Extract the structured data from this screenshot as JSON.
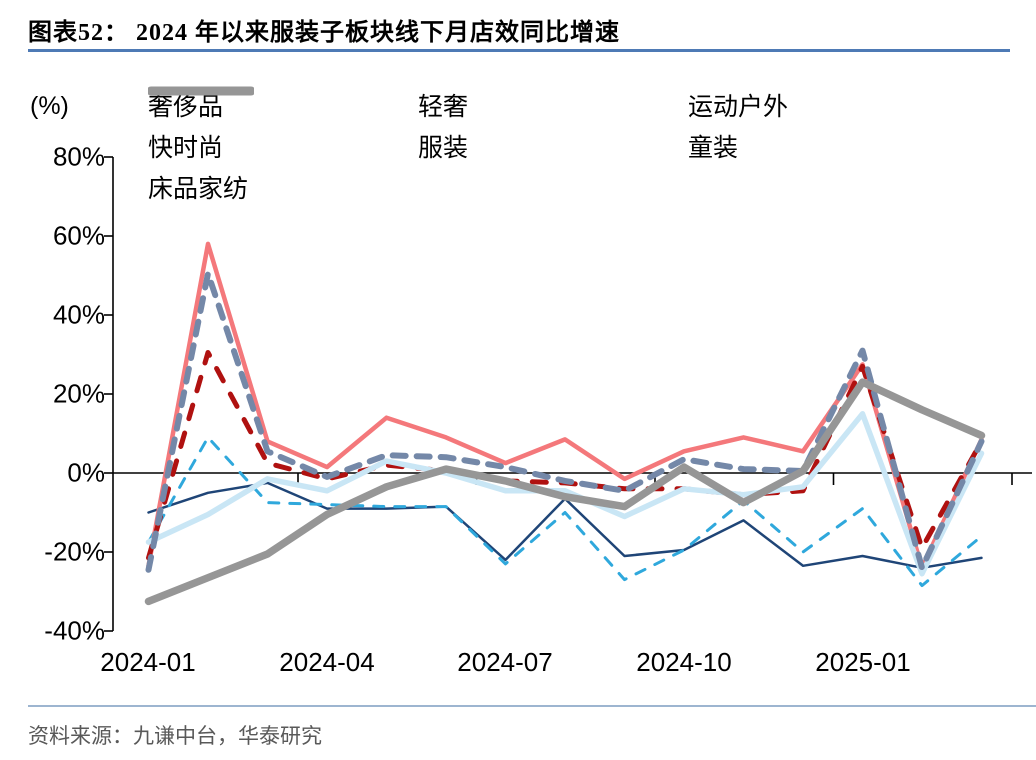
{
  "header": {
    "title": "图表52： 2024 年以来服装子板块线下月店效同比增速"
  },
  "footer": {
    "source": "资料来源：九谦中台，华泰研究"
  },
  "chart_data": {
    "type": "line",
    "title": "2024 年以来服装子板块线下月店效同比增速",
    "unit_label": "(%)",
    "xlabel": "",
    "ylabel": "(%)",
    "ylim": [
      -40,
      80
    ],
    "grid": "zero-line-only",
    "legend_position": "top",
    "ytick_labels": [
      "80%",
      "60%",
      "40%",
      "20%",
      "0%",
      "-20%",
      "-40%"
    ],
    "xtick_labels": [
      "2024-01",
      "2024-04",
      "2024-07",
      "2024-10",
      "2025-01"
    ],
    "x": [
      "2024-01",
      "2024-02",
      "2024-03",
      "2024-04",
      "2024-05",
      "2024-06",
      "2024-07",
      "2024-08",
      "2024-09",
      "2024-10",
      "2024-11",
      "2024-12",
      "2025-01",
      "2025-02",
      "2025-03"
    ],
    "series": [
      {
        "name": "奢侈品",
        "color": "#1F4577",
        "style": "solid",
        "width": 2.5,
        "dash": null,
        "values": [
          -10,
          -5,
          -2.5,
          -9,
          -9,
          -8.5,
          -22,
          -6.5,
          -21,
          -19.5,
          -12,
          -23.5,
          -21,
          -24,
          -21.5
        ]
      },
      {
        "name": "轻奢",
        "color": "#2FA8DC",
        "style": "dashed",
        "width": 3,
        "dash": [
          10,
          11
        ],
        "values": [
          -17.5,
          9,
          -7.5,
          -8,
          -8.5,
          -8.5,
          -23,
          -10,
          -27,
          -19.5,
          -7,
          -20,
          -9,
          -28.5,
          -16
        ]
      },
      {
        "name": "运动户外",
        "color": "#F4787B",
        "style": "solid",
        "width": 4.5,
        "dash": null,
        "values": [
          -23.5,
          58,
          8,
          1.5,
          14,
          9,
          2.5,
          8.5,
          -1.5,
          5.5,
          9,
          5.5,
          27.5,
          -24,
          8.5
        ]
      },
      {
        "name": "快时尚",
        "color": "#B01110",
        "style": "dashed",
        "width": 5,
        "dash": [
          14,
          15
        ],
        "values": [
          -21.5,
          30.5,
          2.5,
          -1.5,
          2,
          0.5,
          -2,
          -2.5,
          -4,
          -4,
          -5.5,
          -4.5,
          27,
          -19,
          8
        ]
      },
      {
        "name": "服装",
        "color": "#C9E6F5",
        "style": "solid",
        "width": 5.5,
        "dash": null,
        "values": [
          -17.5,
          -10.5,
          -1.5,
          -4.5,
          3,
          0,
          -4.5,
          -4.5,
          -11,
          -4,
          -5.5,
          -3.5,
          15,
          -25.5,
          5
        ]
      },
      {
        "name": "童装",
        "color": "#7488A8",
        "style": "dashed",
        "width": 6,
        "dash": [
          13,
          11
        ],
        "values": [
          -24.5,
          50.5,
          5.5,
          -1,
          4.5,
          4,
          1.5,
          -2,
          -4.5,
          3.5,
          1,
          0.5,
          31,
          -24,
          8
        ]
      },
      {
        "name": "床品家纺",
        "color": "#969696",
        "style": "solid",
        "width": 7.5,
        "dash": null,
        "values": [
          -32.5,
          -26.5,
          -20.5,
          -10.5,
          -3.5,
          1,
          -2,
          -6,
          -8.5,
          1.5,
          -7.5,
          0.5,
          23,
          16,
          9.5
        ]
      }
    ]
  }
}
